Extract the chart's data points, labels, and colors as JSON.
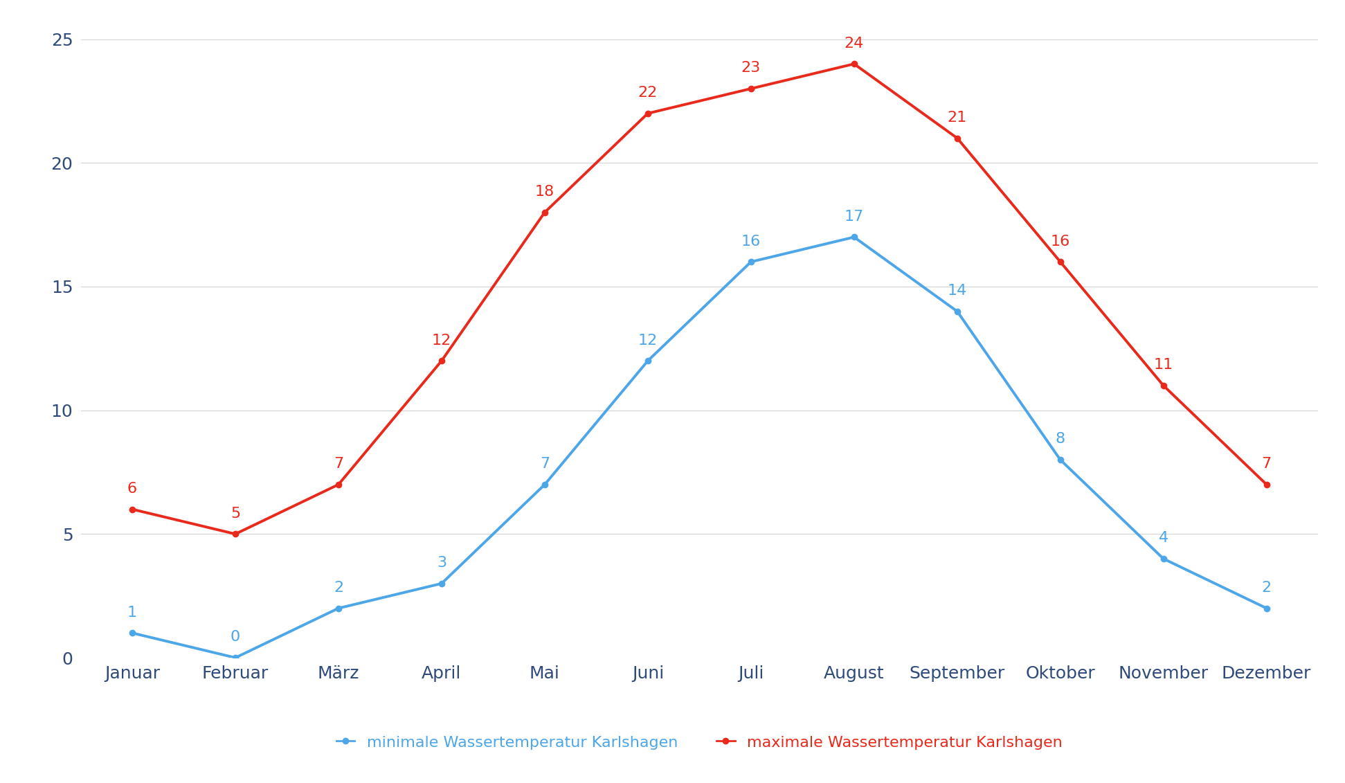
{
  "months": [
    "Januar",
    "Februar",
    "März",
    "April",
    "Mai",
    "Juni",
    "Juli",
    "August",
    "September",
    "Oktober",
    "November",
    "Dezember"
  ],
  "min_temps": [
    1,
    0,
    2,
    3,
    7,
    12,
    16,
    17,
    14,
    8,
    4,
    2
  ],
  "max_temps": [
    6,
    5,
    7,
    12,
    18,
    22,
    23,
    24,
    21,
    16,
    11,
    7
  ],
  "min_color": "#4da6e8",
  "max_color": "#e8291c",
  "min_label": "minimale Wassertemperatur Karlshagen",
  "max_label": "maximale Wassertemperatur Karlshagen",
  "ylim": [
    0,
    25
  ],
  "yticks": [
    0,
    5,
    10,
    15,
    20,
    25
  ],
  "background_color": "#ffffff",
  "grid_color": "#d3d3d3",
  "tick_color": "#2e4a7a",
  "tick_fontsize": 18,
  "annotation_fontsize": 16,
  "legend_fontsize": 16,
  "line_width": 2.8,
  "marker_size": 6
}
